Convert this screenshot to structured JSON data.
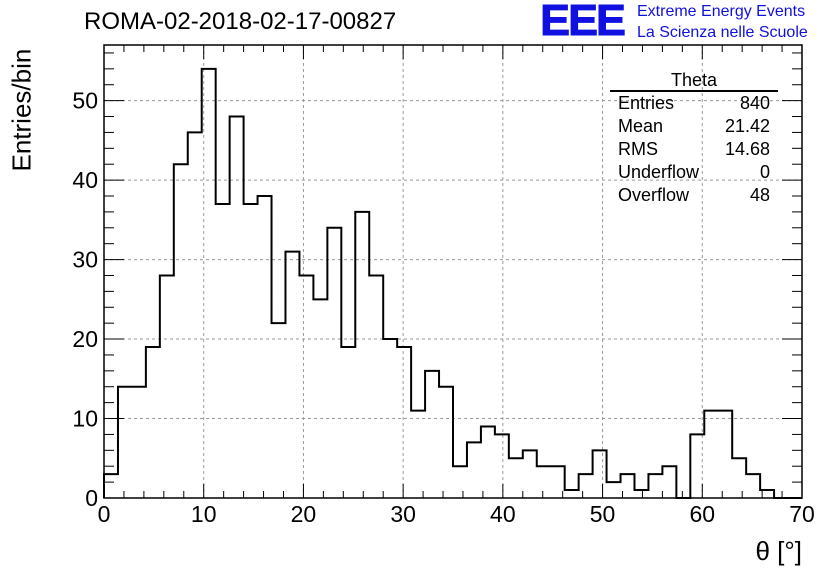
{
  "header": {
    "title": "ROMA-02-2018-02-17-00827",
    "logo_text": "EEE",
    "logo_line1": "Extreme Energy Events",
    "logo_line2": "La Scienza nelle Scuole"
  },
  "stats_box": {
    "title": "Theta",
    "rows": [
      {
        "label": "Entries",
        "value": "840"
      },
      {
        "label": "Mean",
        "value": "21.42"
      },
      {
        "label": "RMS",
        "value": "14.68"
      },
      {
        "label": "Underflow",
        "value": "0"
      },
      {
        "label": "Overflow",
        "value": "48"
      }
    ]
  },
  "chart_data": {
    "type": "bar",
    "style": "step-histogram",
    "title": "ROMA-02-2018-02-17-00827",
    "xlabel": "θ [°]",
    "ylabel": "Entries/bin",
    "xlim": [
      0,
      70
    ],
    "ylim": [
      0,
      57
    ],
    "x_ticks": [
      0,
      10,
      20,
      30,
      40,
      50,
      60,
      70
    ],
    "y_ticks": [
      0,
      10,
      20,
      30,
      40,
      50
    ],
    "grid": true,
    "bin_width": 1.4,
    "bin_edges_start": 0,
    "values": [
      3,
      14,
      14,
      19,
      28,
      42,
      46,
      54,
      37,
      48,
      37,
      38,
      22,
      31,
      28,
      25,
      34,
      19,
      36,
      28,
      20,
      19,
      11,
      16,
      14,
      4,
      7,
      9,
      8,
      5,
      6,
      4,
      4,
      1,
      3,
      6,
      2,
      3,
      1,
      3,
      4,
      0,
      8,
      11,
      11,
      5,
      3,
      1,
      0,
      0
    ],
    "line_color": "#000000"
  }
}
